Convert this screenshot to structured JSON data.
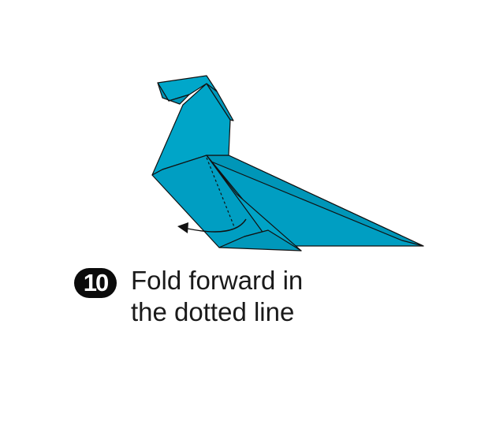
{
  "step": {
    "number": "10",
    "instruction": "Fold forward in\nthe dotted line"
  },
  "diagram": {
    "subject": "origami-bird-model",
    "fill_color": "#009ec2",
    "outline_color": "#111111",
    "fold_line": "dotted",
    "arrow_direction": "left"
  }
}
